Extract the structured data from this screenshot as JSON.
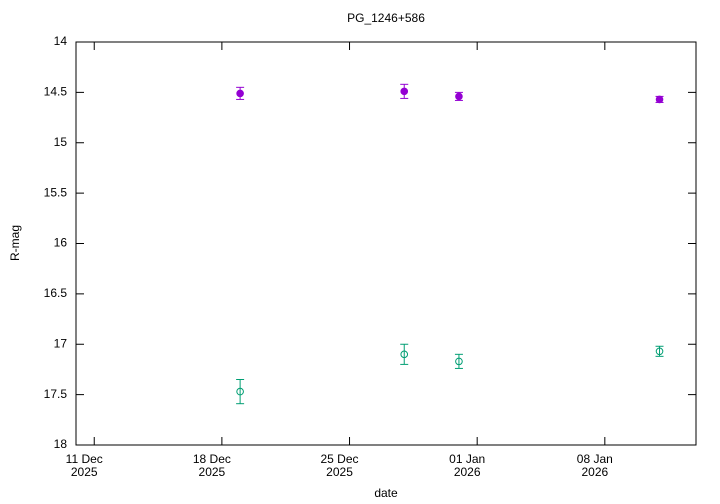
{
  "chart_data": {
    "type": "scatter",
    "title": "PG_1246+586",
    "xlabel": "date",
    "ylabel": "R-mag",
    "x": [
      "2025-12-19",
      "2025-12-28",
      "2025-12-31",
      "2026-01-11"
    ],
    "series": [
      {
        "color": "#9400d3",
        "marker": "filled-circle",
        "values": [
          14.51,
          14.49,
          14.54,
          14.57
        ],
        "errors": [
          0.06,
          0.07,
          0.04,
          0.03
        ]
      },
      {
        "color": "#009e73",
        "marker": "open-circle",
        "values": [
          17.47,
          17.1,
          17.17,
          17.07
        ],
        "errors": [
          0.12,
          0.1,
          0.07,
          0.05
        ]
      }
    ],
    "xlim": [
      "2025-12-10",
      "2026-01-13"
    ],
    "xticks": [
      {
        "value": "2025-12-11",
        "label": [
          "11 Dec",
          "2025"
        ]
      },
      {
        "value": "2025-12-18",
        "label": [
          "18 Dec",
          "2025"
        ]
      },
      {
        "value": "2025-12-25",
        "label": [
          "25 Dec",
          "2025"
        ]
      },
      {
        "value": "2026-01-01",
        "label": [
          "01 Jan",
          "2026"
        ]
      },
      {
        "value": "2026-01-08",
        "label": [
          "08 Jan",
          "2026"
        ]
      }
    ],
    "ylim": [
      14,
      18
    ],
    "y_inverted": true,
    "yticks": [
      14,
      14.5,
      15,
      15.5,
      16,
      16.5,
      17,
      17.5,
      18
    ],
    "grid": false
  }
}
